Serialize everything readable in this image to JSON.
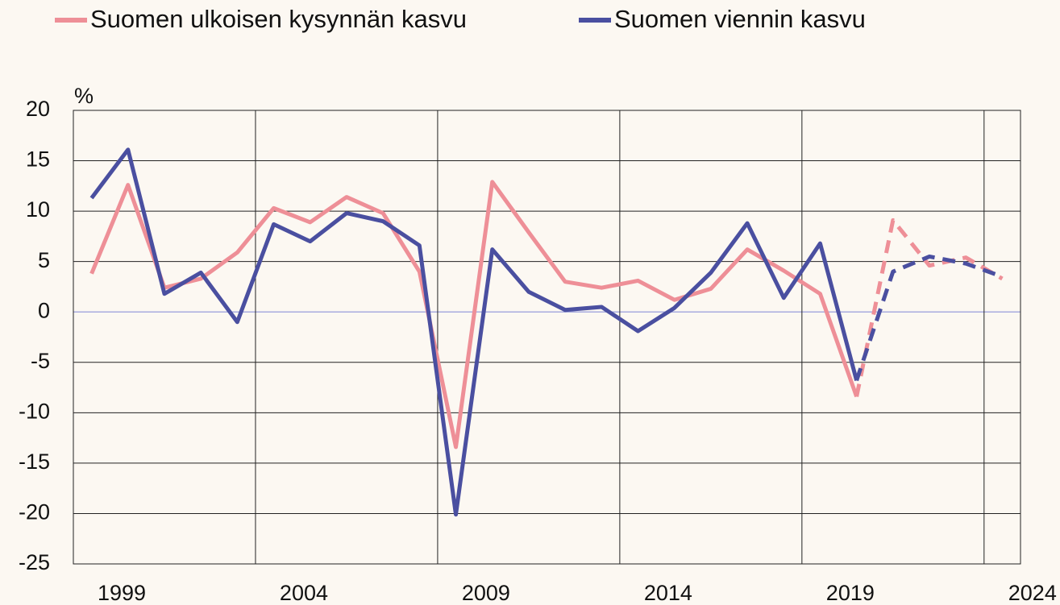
{
  "chart_data": {
    "type": "line",
    "y_unit": "%",
    "categories": [
      "1999",
      null,
      null,
      null,
      null,
      "2004",
      null,
      null,
      null,
      null,
      "2009",
      null,
      null,
      null,
      null,
      "2014",
      null,
      null,
      null,
      null,
      "2019",
      null,
      null,
      null,
      null,
      "2024"
    ],
    "series": [
      {
        "name": "Suomen ulkoisen kysynnän kasvu",
        "color": "#ee8f97",
        "values": [
          3.8,
          12.6,
          2.4,
          3.3,
          5.9,
          10.3,
          8.9,
          11.4,
          9.8,
          4.0,
          -13.4,
          12.9,
          7.9,
          3.0,
          2.4,
          3.1,
          1.2,
          2.3,
          6.2,
          4.1,
          1.8,
          -8.4,
          9.1,
          4.6,
          5.4,
          3.3
        ]
      },
      {
        "name": "Suomen viennin kasvu",
        "color": "#4a4fa0",
        "values": [
          11.3,
          16.1,
          1.8,
          3.9,
          -1.0,
          8.7,
          7.0,
          9.8,
          9.0,
          6.6,
          -20.1,
          6.2,
          2.0,
          0.2,
          0.5,
          -1.9,
          0.4,
          3.9,
          8.8,
          1.4,
          6.8,
          -6.8,
          4.0,
          5.5,
          4.8,
          3.5
        ]
      }
    ],
    "dashed_from_index": 21,
    "ylim": [
      -25,
      20
    ],
    "yticks": [
      -25,
      -20,
      -15,
      -10,
      -5,
      0,
      5,
      10,
      15,
      20
    ],
    "grid": true,
    "legend": "top"
  }
}
